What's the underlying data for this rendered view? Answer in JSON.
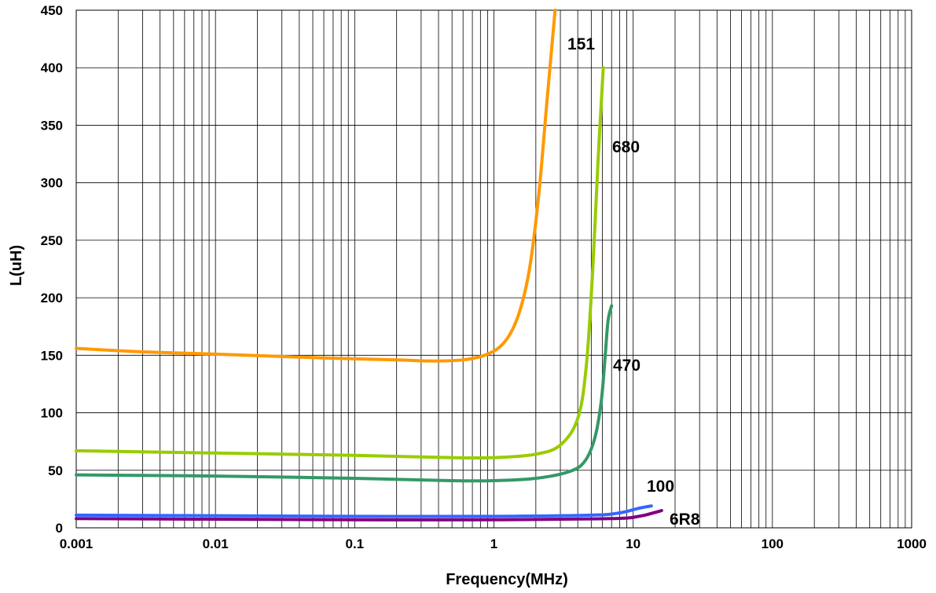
{
  "chart_data": {
    "type": "line",
    "title": "",
    "xlabel": "Frequency(MHz)",
    "ylabel": "L(uH)",
    "xscale": "log",
    "xlim": [
      0.001,
      1000
    ],
    "ylim": [
      0,
      450
    ],
    "grid": true,
    "x_ticks": [
      0.001,
      0.01,
      0.1,
      1,
      10,
      100,
      1000
    ],
    "x_tick_labels": [
      "0.001",
      "0.01",
      "0.1",
      "1",
      "10",
      "100",
      "1000"
    ],
    "y_ticks": [
      0,
      50,
      100,
      150,
      200,
      250,
      300,
      350,
      400,
      450
    ],
    "y_tick_labels": [
      "0",
      "50",
      "100",
      "150",
      "200",
      "250",
      "300",
      "350",
      "400",
      "450"
    ],
    "series": [
      {
        "name": "151",
        "color": "#FF9900",
        "points": [
          [
            0.001,
            156
          ],
          [
            0.003,
            153
          ],
          [
            0.01,
            151
          ],
          [
            0.05,
            148
          ],
          [
            0.2,
            146
          ],
          [
            0.35,
            145
          ],
          [
            0.6,
            146
          ],
          [
            0.9,
            151
          ],
          [
            1.2,
            162
          ],
          [
            1.5,
            185
          ],
          [
            1.8,
            225
          ],
          [
            2.1,
            290
          ],
          [
            2.4,
            370
          ],
          [
            2.75,
            450
          ]
        ]
      },
      {
        "name": "680",
        "color": "#99CC00",
        "points": [
          [
            0.001,
            67
          ],
          [
            0.01,
            65
          ],
          [
            0.1,
            63
          ],
          [
            0.5,
            61
          ],
          [
            1,
            61
          ],
          [
            2,
            64
          ],
          [
            3,
            72
          ],
          [
            4,
            95
          ],
          [
            4.6,
            140
          ],
          [
            5.1,
            220
          ],
          [
            5.6,
            320
          ],
          [
            6.1,
            400
          ]
        ]
      },
      {
        "name": "470",
        "color": "#339966",
        "points": [
          [
            0.001,
            46
          ],
          [
            0.01,
            45
          ],
          [
            0.1,
            43
          ],
          [
            0.5,
            41
          ],
          [
            1,
            41
          ],
          [
            2,
            43
          ],
          [
            3.5,
            49
          ],
          [
            4.5,
            58
          ],
          [
            5.3,
            78
          ],
          [
            5.9,
            110
          ],
          [
            6.3,
            150
          ],
          [
            6.6,
            180
          ],
          [
            7.0,
            193
          ]
        ]
      },
      {
        "name": "100",
        "color": "#3366FF",
        "points": [
          [
            0.001,
            11
          ],
          [
            0.01,
            10.5
          ],
          [
            0.1,
            10
          ],
          [
            1,
            10
          ],
          [
            5,
            11
          ],
          [
            8,
            13
          ],
          [
            11,
            17
          ],
          [
            13.5,
            19
          ]
        ]
      },
      {
        "name": "6R8",
        "color": "#800080",
        "points": [
          [
            0.001,
            8
          ],
          [
            0.01,
            7.5
          ],
          [
            0.1,
            7
          ],
          [
            1,
            7
          ],
          [
            7,
            8
          ],
          [
            11,
            10
          ],
          [
            14,
            13
          ],
          [
            16,
            15
          ]
        ]
      }
    ]
  }
}
